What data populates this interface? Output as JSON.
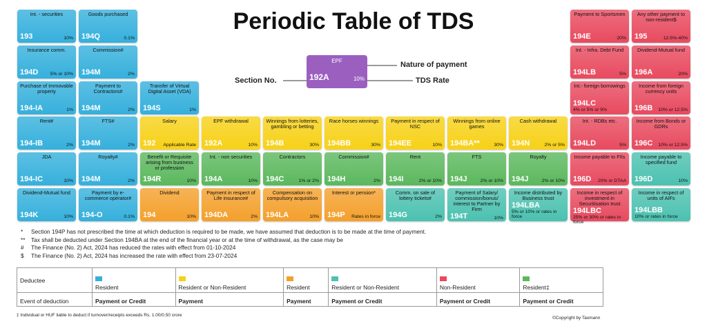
{
  "header": {
    "title": "Periodic Table of TDS"
  },
  "key": {
    "name": "EPF",
    "section": "192A",
    "rate": "10%",
    "color": "#9b5fc0",
    "nature_label": "Nature of payment",
    "section_label": "Section No.",
    "rate_label": "TDS Rate"
  },
  "grid": {
    "rows": [
      [
        {
          "name": "Int. - securities",
          "section": "193",
          "rate": "10%",
          "color": "#35b0dc"
        },
        {
          "name": "Goods purchased",
          "section": "194Q",
          "rate": "0.1%",
          "color": "#35b0dc"
        },
        null,
        null,
        null,
        null,
        null,
        null,
        null,
        {
          "name": "Payment to Sportsmen",
          "section": "194E",
          "rate": "20%",
          "color": "#e84a5f"
        },
        {
          "name": "Any other payment to non-resident$",
          "section": "195",
          "rate": "12.5%-40%",
          "color": "#e84a5f"
        }
      ],
      [
        {
          "name": "Insurance comm.",
          "section": "194D",
          "rate": "5% or 10%",
          "color": "#35b0dc"
        },
        {
          "name": "Commission#",
          "section": "194M",
          "rate": "2%",
          "color": "#35b0dc"
        },
        null,
        null,
        null,
        null,
        null,
        null,
        null,
        {
          "name": "Int. - Infra. Debt Fund",
          "section": "194LB",
          "rate": "5%",
          "color": "#e84a5f"
        },
        {
          "name": "Dividend-Mutual fund",
          "section": "196A",
          "rate": "20%",
          "color": "#e84a5f"
        }
      ],
      [
        {
          "name": "Purchase of Immovable property",
          "section": "194-IA",
          "rate": "1%",
          "color": "#35b0dc"
        },
        {
          "name": "Payment to Contractors#",
          "section": "194M",
          "rate": "2%",
          "color": "#35b0dc"
        },
        {
          "name": "Transfer of Virtual Digital Asset (VDA)",
          "section": "194S",
          "rate": "1%",
          "color": "#35b0dc"
        },
        null,
        null,
        null,
        null,
        null,
        null,
        {
          "name": "Int.- foreign borrowings",
          "section": "194LC",
          "rate": "4% or 5% or 9%",
          "color": "#e84a5f"
        },
        {
          "name": "Income from foreign currency units",
          "section": "196B",
          "rate": "10% or 12.5%",
          "color": "#e84a5f"
        }
      ],
      [
        {
          "name": "Rent#",
          "section": "194-IB",
          "rate": "2%",
          "color": "#35b0dc"
        },
        {
          "name": "FTS#",
          "section": "194M",
          "rate": "2%",
          "color": "#35b0dc"
        },
        {
          "name": "Salary",
          "section": "192",
          "rate": "Applicable Rate",
          "color": "#f7d117"
        },
        {
          "name": "EPF withdrawal",
          "section": "192A",
          "rate": "10%",
          "color": "#f7d117"
        },
        {
          "name": "Winnings from lotteries, gambling or betting",
          "section": "194B",
          "rate": "30%",
          "color": "#f7d117"
        },
        {
          "name": "Race horses winnings",
          "section": "194BB",
          "rate": "30%",
          "color": "#f7d117"
        },
        {
          "name": "Payment in respect of NSC",
          "section": "194EE",
          "rate": "10%",
          "color": "#f7d117"
        },
        {
          "name": "Winnings from online games",
          "section": "194BA**",
          "rate": "30%",
          "color": "#f7d117"
        },
        {
          "name": "Cash withdrawal",
          "section": "194N",
          "rate": "2% or 5%",
          "color": "#f7d117"
        },
        {
          "name": "Int. - RDBs etc.",
          "section": "194LD",
          "rate": "5%",
          "color": "#e84a5f"
        },
        {
          "name": "Income from Bonds or GDRs",
          "section": "196C",
          "rate": "10% or 12.5%",
          "color": "#e84a5f"
        }
      ],
      [
        {
          "name": "JDA",
          "section": "194-IC",
          "rate": "10%",
          "color": "#35b0dc"
        },
        {
          "name": "Royalty#",
          "section": "194M",
          "rate": "2%",
          "color": "#35b0dc"
        },
        {
          "name": "Benefit or Requisite arising from business or profession",
          "section": "194R",
          "rate": "10%",
          "color": "#5bb85d"
        },
        {
          "name": "Int. - non securities",
          "section": "194A",
          "rate": "10%",
          "color": "#5bb85d"
        },
        {
          "name": "Contractors",
          "section": "194C",
          "rate": "1% or 2%",
          "color": "#5bb85d"
        },
        {
          "name": "Commission#",
          "section": "194H",
          "rate": "2%",
          "color": "#5bb85d"
        },
        {
          "name": "Rent",
          "section": "194I",
          "rate": "2% or 10%",
          "color": "#5bb85d"
        },
        {
          "name": "FTS",
          "section": "194J",
          "rate": "2% or 10%",
          "color": "#5bb85d"
        },
        {
          "name": "Royalty",
          "section": "194J",
          "rate": "2% or 10%",
          "color": "#5bb85d"
        },
        {
          "name": "Income payable to FIIs",
          "section": "196D",
          "rate": "20% or DTAA",
          "color": "#e84a5f"
        },
        {
          "name": "Income payable to specified fund",
          "section": "196D",
          "rate": "10%",
          "color": "#4cc1b0"
        }
      ],
      [
        {
          "name": "Dividend-Mutual fund",
          "section": "194K",
          "rate": "10%",
          "color": "#35b0dc"
        },
        {
          "name": "Payment by e-commerce operator#",
          "section": "194-O",
          "rate": "0.1%",
          "color": "#35b0dc"
        },
        {
          "name": "Dividend",
          "section": "194",
          "rate": "10%",
          "color": "#f4a02c"
        },
        {
          "name": "Payment in respect of Life insurance#",
          "section": "194DA",
          "rate": "2%",
          "color": "#f4a02c"
        },
        {
          "name": "Compensation on compulsory acquisition",
          "section": "194LA",
          "rate": "10%",
          "color": "#f4a02c"
        },
        {
          "name": "Interest or pension*",
          "section": "194P",
          "rate": "Rates in force",
          "color": "#f4a02c"
        },
        {
          "name": "Comm. on sale of lottery tickets#",
          "section": "194G",
          "rate": "2%",
          "color": "#4cc1b0"
        },
        {
          "name": "Payment of Salary/ commission/bonus/ interest to Partner by Firm",
          "section": "194T",
          "rate": "10%",
          "color": "#4cc1b0"
        },
        {
          "name": "Income distributed by Business trust",
          "section": "194LBA",
          "rate": "5% or 10% or rates in force",
          "color": "#4cc1b0"
        },
        {
          "name": "Income in respect of investment in Securitisation trust",
          "section": "194LBC",
          "rate": "25% or 30% or rates in force",
          "color": "#e84a5f"
        },
        {
          "name": "Income in respect of units of AIFs",
          "section": "194LBB",
          "rate": "10% or rates in force",
          "color": "#4cc1b0"
        }
      ]
    ]
  },
  "footnotes": [
    {
      "symbol": "*",
      "text": "Section 194P has not prescribed the time at which deduction is required to be made, we have assumed that deduction is to be made at the time of payment."
    },
    {
      "symbol": "**",
      "text": "Tax shall be deducted under Section 194BA at the end of the financial year or at the time of withdrawal, as the case may be"
    },
    {
      "symbol": "#",
      "text": "The Finance (No. 2) Act, 2024 has reduced the rates with effect from 01-10-2024"
    },
    {
      "symbol": "$",
      "text": "The Finance (No. 2) Act, 2024 has increased the rate with effect from 23-07-2024"
    }
  ],
  "legend": {
    "deductee_label": "Deductee",
    "event_label": "Event of deduction",
    "columns": [
      {
        "color": "#35b0dc",
        "deductee": "Resident",
        "event": "Payment or Credit"
      },
      {
        "color": "#f7d117",
        "deductee": "Resident or Non-Resident",
        "event": "Payment"
      },
      {
        "color": "#f4a02c",
        "deductee": "Resident",
        "event": "Payment"
      },
      {
        "color": "#4cc1b0",
        "deductee": "Resident or Non-Resident",
        "event": "Payment or Credit"
      },
      {
        "color": "#e84a5f",
        "deductee": "Non-Resident",
        "event": "Payment or Credit"
      },
      {
        "color": "#5bb85d",
        "deductee": "Resident‡",
        "event": "Payment or Credit"
      }
    ]
  },
  "footer": {
    "note": "‡ Individual or HUF liable to deduct if turnover/receipts exceeds Rs. 1.00/0.50 crore",
    "copyright": "©Copyright by Taxmann"
  }
}
